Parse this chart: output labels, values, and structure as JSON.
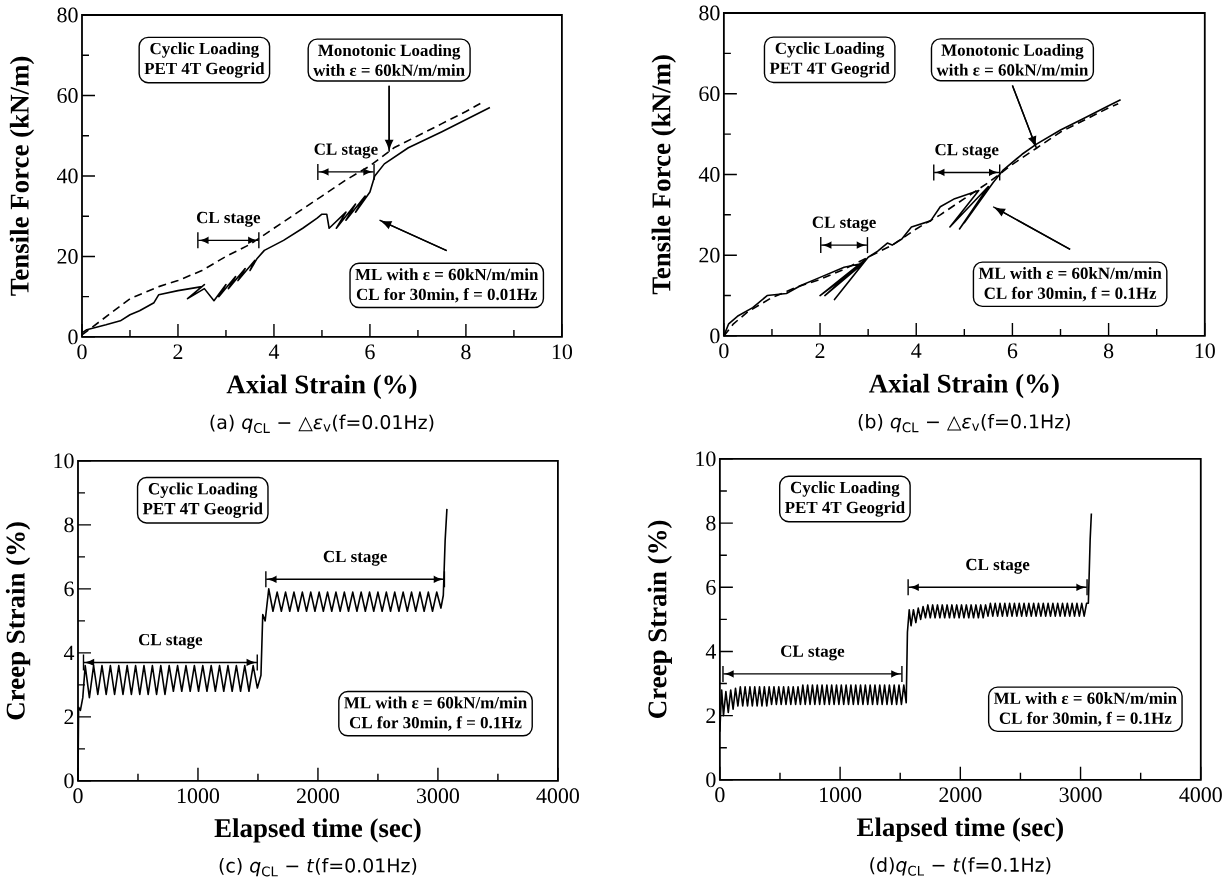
{
  "chart_data": [
    {
      "type": "line",
      "title": "(a) *q*$_{CL}$ − △*ε*$_{v}$(f=0.01Hz)",
      "xlabel": "Axial Strain (%)",
      "ylabel": "Tensile Force (kN/m)",
      "xlim": [
        0,
        10
      ],
      "ylim": [
        0,
        80
      ],
      "xticks": [
        0,
        {
          "value": 1,
          "label": null
        },
        2,
        {
          "value": 3,
          "label": null
        },
        4,
        {
          "value": 5,
          "label": null
        },
        6,
        {
          "value": 7,
          "label": null
        },
        8,
        {
          "value": 9,
          "label": null
        },
        10
      ],
      "yticks": [
        0,
        {
          "value": 10,
          "label": null
        },
        20,
        {
          "value": 30,
          "label": null
        },
        40,
        {
          "value": 50,
          "label": null
        },
        60,
        {
          "value": 70,
          "label": null
        },
        80
      ],
      "series": [
        {
          "color": "#000000",
          "line_style": "solid",
          "x": [
            0,
            0.1,
            0.5,
            0.8,
            1.0,
            1.2,
            1.5,
            1.6,
            2.0,
            2.5,
            2.55,
            2.2,
            2.55,
            2.75,
            3.0,
            2.85,
            3.2,
            3.05,
            3.4,
            3.25,
            3.6,
            3.5,
            3.65,
            3.8,
            4.2,
            4.6,
            4.9,
            5.0,
            5.1,
            5.15,
            5.5,
            5.3,
            5.7,
            5.5,
            5.9,
            5.7,
            6.0,
            6.1,
            6.3,
            6.8,
            7.5,
            8.0,
            8.5
          ],
          "values": [
            1,
            1.8,
            3,
            4,
            5.5,
            6.5,
            8.5,
            10.5,
            11.5,
            12.5,
            13,
            9.5,
            12,
            9,
            13,
            10,
            15,
            12,
            17,
            14,
            19,
            16.5,
            19.5,
            21.5,
            24,
            27,
            29.5,
            30.5,
            30.5,
            27,
            31,
            27,
            33,
            29,
            35,
            31,
            36,
            40,
            43,
            47,
            51,
            54,
            57
          ]
        },
        {
          "color": "#000000",
          "line_style": "dashed",
          "x": [
            0,
            0.5,
            1.0,
            1.6,
            2.0,
            2.5,
            3.0,
            3.5,
            4.0,
            4.5,
            5.0,
            5.5,
            6.0,
            6.5,
            7.0,
            7.5,
            8.0,
            8.3
          ],
          "values": [
            0.5,
            5,
            9.5,
            12.5,
            14,
            16.5,
            20,
            23,
            27,
            31,
            35,
            39,
            42.5,
            47,
            50,
            53,
            56,
            58
          ]
        }
      ],
      "annotations": [
        "Cyclic Loading",
        "PET 4T Geogrid",
        "Monotonic Loading",
        {
          "text": "with ε = 60kN/m/min",
          "x": 6.4,
          "y": 46
        },
        "ML with ε = 60kN/m/min",
        "CL for 30min, f = 0.01Hz",
        "CL stage",
        "CL stage"
      ]
    },
    {
      "type": "line",
      "title": "(b) *q*$_{CL}$ − △*ε*$_{v}$(f=0.1Hz)",
      "xlabel": "Axial Strain (%)",
      "ylabel": "Tensile Force (kN/m)",
      "xlim": [
        0,
        10
      ],
      "ylim": [
        0,
        80
      ],
      "xticks": [
        0,
        {
          "value": 1,
          "label": null
        },
        2,
        {
          "value": 3,
          "label": null
        },
        4,
        {
          "value": 5,
          "label": null
        },
        6,
        {
          "value": 7,
          "label": null
        },
        8,
        {
          "value": 9,
          "label": null
        },
        10
      ],
      "yticks": [
        0,
        {
          "value": 10,
          "label": null
        },
        20,
        {
          "value": 30,
          "label": null
        },
        40,
        {
          "value": 50,
          "label": null
        },
        60,
        {
          "value": 70,
          "label": null
        },
        80
      ],
      "series": [
        {
          "color": "#000000",
          "line_style": "solid",
          "x": [
            0,
            0.1,
            0.3,
            0.6,
            0.9,
            1.3,
            1.6,
            2.0,
            2.5,
            2.9,
            2.0,
            2.95,
            2.1,
            2.9,
            2.3,
            3.0,
            3.2,
            3.4,
            3.5,
            3.7,
            3.9,
            4.3,
            4.5,
            4.8,
            5.3,
            4.7,
            5.5,
            4.9,
            5.4,
            5.0,
            5.6,
            5.8,
            6.2,
            6.5,
            7.0,
            7.5,
            8.0,
            8.25
          ],
          "values": [
            0,
            3,
            5,
            7,
            10,
            10.5,
            12.5,
            14.5,
            17,
            18,
            10,
            19,
            10,
            18,
            9,
            19.5,
            21,
            23,
            22.5,
            24,
            27,
            28.5,
            32,
            34,
            36,
            27,
            37,
            26.5,
            35,
            28,
            38,
            41,
            45,
            47.5,
            51,
            54,
            57,
            58.5
          ]
        },
        {
          "color": "#000000",
          "line_style": "dashed",
          "x": [
            0,
            0.2,
            0.5,
            1.0,
            1.5,
            2.0,
            2.5,
            3.0,
            3.5,
            4.0,
            4.5,
            5.0,
            5.5,
            6.0,
            6.5,
            7.0,
            7.5,
            8.0,
            8.2
          ],
          "values": [
            0,
            3,
            6,
            9.5,
            12,
            14,
            16.5,
            19.5,
            22.5,
            26.5,
            30,
            34,
            38,
            42.5,
            46.5,
            50.5,
            53.5,
            56.5,
            57.5
          ]
        }
      ],
      "annotations": [
        "Cyclic Loading",
        "PET 4T Geogrid",
        "Monotonic Loading",
        {
          "text": "with ε = 60kN/m/min",
          "x": 6.5,
          "y": 46.5
        },
        "ML with ε = 60kN/m/min",
        "CL for 30min, f = 0.1Hz",
        "CL stage",
        "CL stage"
      ]
    },
    {
      "type": "line",
      "title": "(c) *q*$_{CL}$ − *t*(f=0.01Hz)",
      "xlabel": "Elapsed time (sec)",
      "ylabel": "Creep Strain (%)",
      "xlim": [
        0,
        4000
      ],
      "ylim": [
        0,
        10
      ],
      "xticks": [
        0,
        {
          "value": 500,
          "label": null
        },
        1000,
        {
          "value": 1500,
          "label": null
        },
        2000,
        {
          "value": 2500,
          "label": null
        },
        3000,
        {
          "value": 3500,
          "label": null
        },
        4000
      ],
      "yticks": [
        0,
        {
          "value": 1,
          "label": null
        },
        2,
        {
          "value": 3,
          "label": null
        },
        4,
        {
          "value": 5,
          "label": null
        },
        6,
        {
          "value": 7,
          "label": null
        },
        8,
        {
          "value": 9,
          "label": null
        },
        10
      ],
      "series": [
        {
          "color": "#000000",
          "line_style": "solid",
          "x": [
            0,
            5,
            20,
            40,
            60,
            95,
            130,
            165,
            200,
            235,
            270,
            305,
            340,
            375,
            410,
            445,
            480,
            515,
            550,
            585,
            620,
            655,
            690,
            725,
            760,
            795,
            830,
            865,
            900,
            935,
            970,
            1005,
            1040,
            1075,
            1110,
            1145,
            1180,
            1215,
            1250,
            1285,
            1320,
            1355,
            1390,
            1425,
            1460,
            1495,
            1525,
            1540,
            1560,
            1590,
            1625,
            1660,
            1695,
            1730,
            1765,
            1800,
            1835,
            1870,
            1905,
            1940,
            1975,
            2010,
            2045,
            2080,
            2115,
            2150,
            2185,
            2220,
            2255,
            2290,
            2325,
            2360,
            2395,
            2430,
            2465,
            2500,
            2535,
            2570,
            2605,
            2640,
            2675,
            2710,
            2745,
            2780,
            2815,
            2850,
            2885,
            2920,
            2955,
            2990,
            3025,
            3045,
            3060,
            3075
          ],
          "values": [
            0,
            2.3,
            2.2,
            2.6,
            3.6,
            2.6,
            3.6,
            2.7,
            3.6,
            2.7,
            3.6,
            2.7,
            3.6,
            2.7,
            3.6,
            2.7,
            3.6,
            2.7,
            3.6,
            2.7,
            3.6,
            2.7,
            3.6,
            2.7,
            3.6,
            2.8,
            3.6,
            2.8,
            3.6,
            2.8,
            3.6,
            2.8,
            3.6,
            2.8,
            3.6,
            2.8,
            3.6,
            2.8,
            3.6,
            2.8,
            3.6,
            2.8,
            3.6,
            2.8,
            3.6,
            2.9,
            3.3,
            5.2,
            5.0,
            6.0,
            5.3,
            5.9,
            5.3,
            5.9,
            5.3,
            5.9,
            5.3,
            5.9,
            5.3,
            5.9,
            5.3,
            5.9,
            5.3,
            5.9,
            5.3,
            5.9,
            5.3,
            5.9,
            5.3,
            5.9,
            5.3,
            5.9,
            5.3,
            5.9,
            5.3,
            5.9,
            5.3,
            5.9,
            5.3,
            5.9,
            5.3,
            5.9,
            5.3,
            5.9,
            5.3,
            5.9,
            5.3,
            5.9,
            5.3,
            5.9,
            5.4,
            5.8,
            7.5,
            8.5
          ]
        }
      ],
      "annotations": [
        "Cyclic Loading",
        "PET 4T Geogrid",
        "ML with ε = 60kN/m/min",
        "CL for 30min, f = 0.1Hz",
        "CL stage",
        "CL stage"
      ]
    },
    {
      "type": "line",
      "title": "(d)*q*$_{CL}$ − *t*(f=0.1Hz)",
      "xlabel": "Elapsed time (sec)",
      "ylabel": "Creep Strain (%)",
      "xlim": [
        0,
        4000
      ],
      "ylim": [
        0,
        10
      ],
      "xticks": [
        0,
        {
          "value": 500,
          "label": null
        },
        1000,
        {
          "value": 1500,
          "label": null
        },
        2000,
        {
          "value": 2500,
          "label": null
        },
        3000,
        {
          "value": 3500,
          "label": null
        },
        4000
      ],
      "yticks": [
        0,
        {
          "value": 1,
          "label": null
        },
        2,
        {
          "value": 3,
          "label": null
        },
        4,
        {
          "value": 5,
          "label": null
        },
        6,
        {
          "value": 7,
          "label": null
        },
        8,
        {
          "value": 9,
          "label": null
        },
        10
      ],
      "series": [
        {
          "color": "#000000",
          "line_style": "solid",
          "x": [
            0,
            5,
            15,
            30,
            50,
            70,
            90,
            110,
            130,
            150,
            170,
            190,
            210,
            230,
            250,
            270,
            290,
            310,
            330,
            350,
            370,
            390,
            410,
            430,
            450,
            470,
            490,
            510,
            530,
            550,
            570,
            590,
            610,
            630,
            650,
            670,
            690,
            710,
            730,
            750,
            770,
            790,
            810,
            830,
            850,
            870,
            890,
            910,
            930,
            950,
            970,
            990,
            1010,
            1030,
            1050,
            1070,
            1090,
            1110,
            1130,
            1150,
            1170,
            1190,
            1210,
            1230,
            1250,
            1270,
            1290,
            1310,
            1330,
            1350,
            1370,
            1390,
            1410,
            1430,
            1450,
            1470,
            1490,
            1510,
            1530,
            1550,
            1560,
            1575,
            1590,
            1610,
            1630,
            1650,
            1670,
            1690,
            1710,
            1730,
            1750,
            1770,
            1790,
            1810,
            1830,
            1850,
            1870,
            1890,
            1910,
            1930,
            1950,
            1970,
            1990,
            2010,
            2030,
            2050,
            2070,
            2090,
            2110,
            2130,
            2150,
            2170,
            2190,
            2210,
            2230,
            2250,
            2270,
            2290,
            2310,
            2330,
            2350,
            2370,
            2390,
            2410,
            2430,
            2450,
            2470,
            2490,
            2510,
            2530,
            2550,
            2570,
            2590,
            2610,
            2630,
            2650,
            2670,
            2690,
            2710,
            2730,
            2750,
            2770,
            2790,
            2810,
            2830,
            2850,
            2870,
            2890,
            2910,
            2930,
            2950,
            2970,
            2990,
            3010,
            3030,
            3050,
            3065,
            3080,
            3090
          ],
          "values": [
            1.5,
            2.0,
            2.8,
            2.0,
            2.75,
            2.1,
            2.8,
            2.2,
            2.85,
            2.3,
            2.9,
            2.3,
            2.9,
            2.3,
            2.9,
            2.3,
            2.9,
            2.3,
            2.9,
            2.3,
            2.9,
            2.3,
            2.9,
            2.35,
            2.9,
            2.35,
            2.9,
            2.35,
            2.9,
            2.35,
            2.9,
            2.35,
            2.9,
            2.35,
            2.9,
            2.35,
            2.95,
            2.35,
            2.95,
            2.35,
            2.95,
            2.35,
            2.95,
            2.35,
            2.95,
            2.35,
            2.95,
            2.35,
            2.95,
            2.35,
            2.95,
            2.35,
            2.95,
            2.35,
            2.95,
            2.35,
            2.95,
            2.35,
            2.95,
            2.35,
            2.95,
            2.35,
            2.95,
            2.35,
            2.95,
            2.35,
            2.95,
            2.35,
            2.95,
            2.35,
            2.95,
            2.35,
            2.95,
            2.35,
            2.95,
            2.35,
            2.95,
            2.35,
            2.95,
            2.4,
            4.6,
            5.3,
            4.8,
            5.3,
            4.9,
            5.35,
            5.0,
            5.4,
            5.05,
            5.45,
            5.05,
            5.45,
            5.05,
            5.45,
            5.05,
            5.45,
            5.05,
            5.45,
            5.05,
            5.45,
            5.05,
            5.45,
            5.05,
            5.45,
            5.05,
            5.45,
            5.05,
            5.45,
            5.05,
            5.45,
            5.05,
            5.45,
            5.05,
            5.45,
            5.1,
            5.5,
            5.1,
            5.5,
            5.1,
            5.5,
            5.1,
            5.5,
            5.1,
            5.5,
            5.1,
            5.5,
            5.1,
            5.5,
            5.1,
            5.5,
            5.1,
            5.5,
            5.1,
            5.5,
            5.1,
            5.5,
            5.1,
            5.5,
            5.1,
            5.5,
            5.1,
            5.5,
            5.1,
            5.5,
            5.1,
            5.5,
            5.1,
            5.5,
            5.1,
            5.5,
            5.1,
            5.5,
            5.1,
            5.5,
            5.1,
            5.5,
            5.5,
            7.5,
            8.3
          ]
        }
      ],
      "annotations": [
        "Cyclic Loading",
        "PET 4T Geogrid",
        "ML with ε = 60kN/m/min",
        "CL for 30min, f = 0.1Hz",
        "CL stage",
        "CL stage"
      ]
    }
  ]
}
